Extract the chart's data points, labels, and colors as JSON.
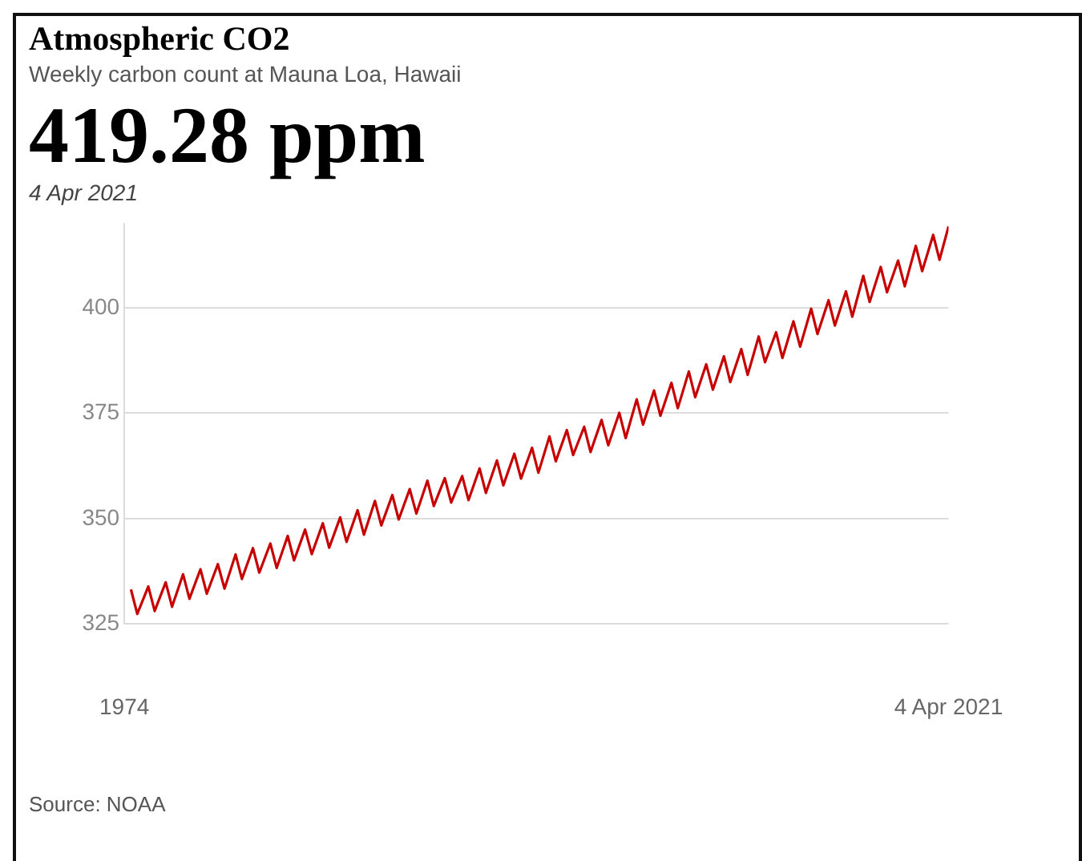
{
  "chart_data": {
    "type": "line",
    "title": "Atmospheric CO2",
    "subtitle": "Weekly carbon count at Mauna Loa, Hawaii",
    "annotations": [
      "419.28 ppm",
      "4 Apr 2021",
      "Source: NOAA"
    ],
    "x": [
      "1974-05-19",
      "1974-09-29",
      "1975-05-18",
      "1975-09-28",
      "1976-05-16",
      "1976-09-26",
      "1977-05-15",
      "1977-09-25",
      "1978-05-14",
      "1978-09-24",
      "1979-05-13",
      "1979-09-30",
      "1980-05-18",
      "1980-09-28",
      "1981-05-17",
      "1981-09-27",
      "1982-05-16",
      "1982-09-26",
      "1983-05-15",
      "1983-09-25",
      "1984-05-13",
      "1984-09-30",
      "1985-05-19",
      "1985-09-29",
      "1986-05-18",
      "1986-09-28",
      "1987-05-17",
      "1987-09-27",
      "1988-05-15",
      "1988-09-25",
      "1989-05-14",
      "1989-09-24",
      "1990-05-13",
      "1990-09-30",
      "1991-05-19",
      "1991-09-29",
      "1992-05-17",
      "1992-09-27",
      "1993-05-16",
      "1993-09-26",
      "1994-05-15",
      "1994-09-25",
      "1995-05-14",
      "1995-09-24",
      "1996-05-12",
      "1996-09-29",
      "1997-05-18",
      "1997-09-28",
      "1998-05-17",
      "1998-09-27",
      "1999-05-16",
      "1999-09-26",
      "2000-05-14",
      "2000-09-24",
      "2001-05-13",
      "2001-09-30",
      "2002-05-19",
      "2002-09-29",
      "2003-05-18",
      "2003-09-28",
      "2004-05-16",
      "2004-09-26",
      "2005-05-15",
      "2005-09-25",
      "2006-05-14",
      "2006-09-24",
      "2007-05-13",
      "2007-09-30",
      "2008-05-18",
      "2008-09-28",
      "2009-05-17",
      "2009-09-27",
      "2010-05-16",
      "2010-09-26",
      "2011-05-15",
      "2011-09-25",
      "2012-05-13",
      "2012-09-30",
      "2013-05-19",
      "2013-09-29",
      "2014-05-18",
      "2014-09-28",
      "2015-05-17",
      "2015-09-27",
      "2016-05-15",
      "2016-09-25",
      "2017-05-14",
      "2017-09-24",
      "2018-05-13",
      "2018-09-30",
      "2019-05-19",
      "2019-09-29",
      "2020-05-17",
      "2020-09-27",
      "2021-04-04"
    ],
    "series": [
      {
        "color": "#c70000",
        "values": [
          333.2,
          327.4,
          333.9,
          328.1,
          334.9,
          329.1,
          336.8,
          331.0,
          338.0,
          332.2,
          339.2,
          333.4,
          341.5,
          335.7,
          343.0,
          337.2,
          344.1,
          338.3,
          345.9,
          340.1,
          347.4,
          341.6,
          348.9,
          343.1,
          350.3,
          344.5,
          352.0,
          346.2,
          354.2,
          348.4,
          355.6,
          349.8,
          357.0,
          351.2,
          359.0,
          353.0,
          359.6,
          353.8,
          360.1,
          354.4,
          361.9,
          356.1,
          363.8,
          357.9,
          365.4,
          359.5,
          366.8,
          360.9,
          369.5,
          363.6,
          371.0,
          365.1,
          371.8,
          365.8,
          373.4,
          367.4,
          375.1,
          369.1,
          378.3,
          372.3,
          380.4,
          374.4,
          382.2,
          376.2,
          384.9,
          378.8,
          386.6,
          380.6,
          388.5,
          382.4,
          390.2,
          384.1,
          393.2,
          387.1,
          394.2,
          388.1,
          396.8,
          390.8,
          399.8,
          393.8,
          401.8,
          395.8,
          403.9,
          397.9,
          407.6,
          401.4,
          409.7,
          403.7,
          411.2,
          405.1,
          414.7,
          408.7,
          417.3,
          411.4,
          419.3
        ]
      }
    ],
    "xlim": [
      "1974-01-01",
      "2021-04-04"
    ],
    "xticks": [
      {
        "value": "1974-01-01",
        "label": "1974"
      },
      {
        "value": "2021-04-04",
        "label": "4 Apr 2021"
      }
    ],
    "ylim": [
      325,
      420
    ],
    "yticks": [
      325,
      350,
      375,
      400
    ],
    "grid": "y",
    "marker": "none",
    "line_style": "solid"
  }
}
